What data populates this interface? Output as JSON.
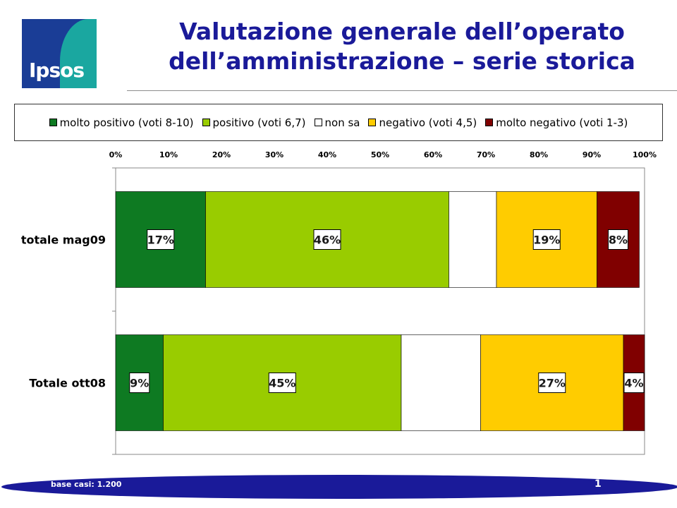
{
  "logo": {
    "text": "Ipsos"
  },
  "title": {
    "line1": "Valutazione generale dell’operato",
    "line2": "dell’amministrazione – serie storica"
  },
  "legend": [
    {
      "label": "molto positivo (voti 8-10)",
      "color": "#0e7a22"
    },
    {
      "label": "positivo (voti 6,7)",
      "color": "#99cc00"
    },
    {
      "label": "non sa",
      "color": "#ffffff"
    },
    {
      "label": "negativo (voti 4,5)",
      "color": "#ffcc00"
    },
    {
      "label": "molto negativo (voti 1-3)",
      "color": "#800000"
    }
  ],
  "chart_data": {
    "type": "bar",
    "orientation": "horizontal-stacked",
    "categories": [
      "totale mag09",
      "Totale ott08"
    ],
    "xlim": [
      0,
      100
    ],
    "x_ticks": [
      "0%",
      "10%",
      "20%",
      "30%",
      "40%",
      "50%",
      "60%",
      "70%",
      "80%",
      "90%",
      "100%"
    ],
    "series": [
      {
        "name": "molto positivo (voti 8-10)",
        "color": "#0e7a22",
        "values": [
          17,
          9
        ],
        "labels": [
          "17%",
          "9%"
        ]
      },
      {
        "name": "positivo (voti 6,7)",
        "color": "#99cc00",
        "values": [
          46,
          45
        ],
        "labels": [
          "46%",
          "45%"
        ]
      },
      {
        "name": "non sa",
        "color": "#ffffff",
        "values": [
          9,
          15
        ],
        "labels": [
          "",
          ""
        ]
      },
      {
        "name": "negativo (voti 4,5)",
        "color": "#ffcc00",
        "values": [
          19,
          27
        ],
        "labels": [
          "19%",
          "27%"
        ]
      },
      {
        "name": "molto negativo (voti 1-3)",
        "color": "#800000",
        "values": [
          8,
          4
        ],
        "labels": [
          "8%",
          "4%"
        ]
      }
    ]
  },
  "footer": {
    "base": "base casi: 1.200",
    "page": "1"
  }
}
